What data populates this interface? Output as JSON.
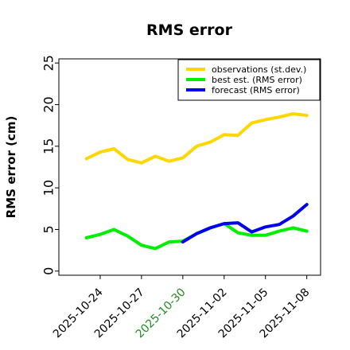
{
  "chart_data": {
    "type": "line",
    "title": "RMS error",
    "xlabel": "",
    "ylabel": "RMS error (cm)",
    "ylim": [
      -0.5,
      25.5
    ],
    "yticks": [
      0,
      5,
      10,
      15,
      20,
      25
    ],
    "xlim": [
      "2025-10-21",
      "2025-11-09"
    ],
    "xticks": [
      {
        "date": "2025-10-24",
        "label": "2025-10-24",
        "color": "#000000"
      },
      {
        "date": "2025-10-27",
        "label": "2025-10-27",
        "color": "#000000"
      },
      {
        "date": "2025-10-30",
        "label": "2025-10-30",
        "color": "#228B22"
      },
      {
        "date": "2025-11-02",
        "label": "2025-11-02",
        "color": "#000000"
      },
      {
        "date": "2025-11-05",
        "label": "2025-11-05",
        "color": "#000000"
      },
      {
        "date": "2025-11-08",
        "label": "2025-11-08",
        "color": "#000000"
      }
    ],
    "grid": false,
    "legend_position": "top-right",
    "series": [
      {
        "name": "observations (st.dev.)",
        "color": "#FFD700",
        "points": [
          [
            "2025-10-23",
            13.5
          ],
          [
            "2025-10-24",
            14.3
          ],
          [
            "2025-10-25",
            14.7
          ],
          [
            "2025-10-26",
            13.4
          ],
          [
            "2025-10-27",
            13.0
          ],
          [
            "2025-10-28",
            13.8
          ],
          [
            "2025-10-29",
            13.2
          ],
          [
            "2025-10-30",
            13.6
          ],
          [
            "2025-10-31",
            15.0
          ],
          [
            "2025-11-01",
            15.5
          ],
          [
            "2025-11-02",
            16.4
          ],
          [
            "2025-11-03",
            16.3
          ],
          [
            "2025-11-04",
            17.8
          ],
          [
            "2025-11-05",
            18.2
          ],
          [
            "2025-11-06",
            18.5
          ],
          [
            "2025-11-07",
            18.9
          ],
          [
            "2025-11-08",
            18.7
          ]
        ]
      },
      {
        "name": "best est. (RMS error)",
        "color": "#00EE00",
        "points": [
          [
            "2025-10-23",
            4.0
          ],
          [
            "2025-10-24",
            4.4
          ],
          [
            "2025-10-25",
            5.0
          ],
          [
            "2025-10-26",
            4.2
          ],
          [
            "2025-10-27",
            3.1
          ],
          [
            "2025-10-28",
            2.7
          ],
          [
            "2025-10-29",
            3.5
          ],
          [
            "2025-10-30",
            3.6
          ],
          [
            "2025-10-31",
            4.5
          ],
          [
            "2025-11-01",
            5.2
          ],
          [
            "2025-11-02",
            5.7
          ],
          [
            "2025-11-03",
            4.6
          ],
          [
            "2025-11-04",
            4.3
          ],
          [
            "2025-11-05",
            4.3
          ],
          [
            "2025-11-06",
            4.8
          ],
          [
            "2025-11-07",
            5.2
          ],
          [
            "2025-11-08",
            4.8
          ]
        ]
      },
      {
        "name": "forecast (RMS error)",
        "color": "#0000EE",
        "points": [
          [
            "2025-10-30",
            3.5
          ],
          [
            "2025-10-31",
            4.5
          ],
          [
            "2025-11-01",
            5.2
          ],
          [
            "2025-11-02",
            5.7
          ],
          [
            "2025-11-03",
            5.8
          ],
          [
            "2025-11-04",
            4.7
          ],
          [
            "2025-11-05",
            5.3
          ],
          [
            "2025-11-06",
            5.6
          ],
          [
            "2025-11-07",
            6.6
          ],
          [
            "2025-11-08",
            8.0
          ]
        ]
      }
    ]
  }
}
